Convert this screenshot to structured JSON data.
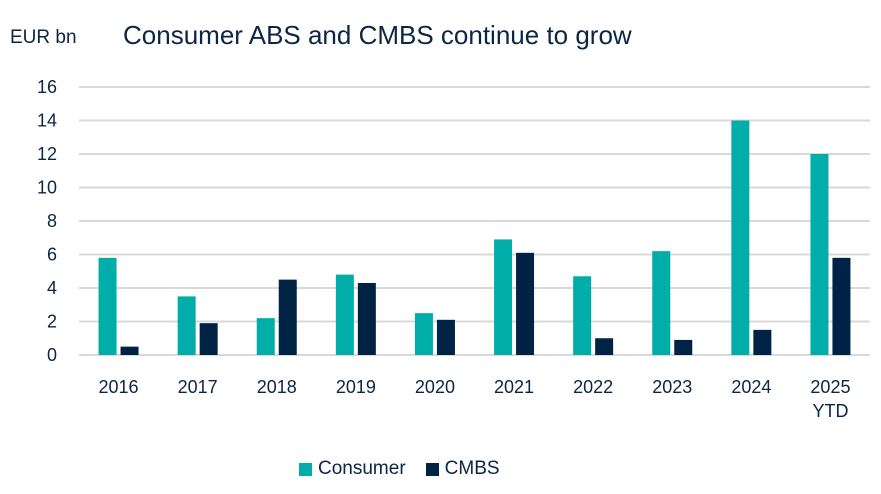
{
  "colors": {
    "consumer": "#00ADA9",
    "cmbs": "#002244",
    "grid": "#D9D9D9",
    "text": "#0B2545"
  },
  "chart_data": {
    "type": "bar",
    "title": "Consumer ABS and CMBS continue to grow",
    "ylabel": "EUR bn",
    "xlabel": "",
    "ylim": [
      0,
      16
    ],
    "yticks": [
      0,
      2,
      4,
      6,
      8,
      10,
      12,
      14,
      16
    ],
    "grid": true,
    "legend_position": "bottom-center",
    "categories": [
      "2016",
      "2017",
      "2018",
      "2019",
      "2020",
      "2021",
      "2022",
      "2023",
      "2024",
      "2025 YTD"
    ],
    "category_lines": [
      [
        "2016"
      ],
      [
        "2017"
      ],
      [
        "2018"
      ],
      [
        "2019"
      ],
      [
        "2020"
      ],
      [
        "2021"
      ],
      [
        "2022"
      ],
      [
        "2023"
      ],
      [
        "2024"
      ],
      [
        "2025",
        "YTD"
      ]
    ],
    "series": [
      {
        "name": "Consumer",
        "color_key": "consumer",
        "values": [
          5.8,
          3.5,
          2.2,
          4.8,
          2.5,
          6.9,
          4.7,
          6.2,
          14.0,
          12.0
        ]
      },
      {
        "name": "CMBS",
        "color_key": "cmbs",
        "values": [
          0.5,
          1.9,
          4.5,
          4.3,
          2.1,
          6.1,
          1.0,
          0.9,
          1.5,
          5.8
        ]
      }
    ]
  },
  "legend": {
    "items": [
      {
        "label": "Consumer",
        "color_key": "consumer"
      },
      {
        "label": "CMBS",
        "color_key": "cmbs"
      }
    ]
  }
}
